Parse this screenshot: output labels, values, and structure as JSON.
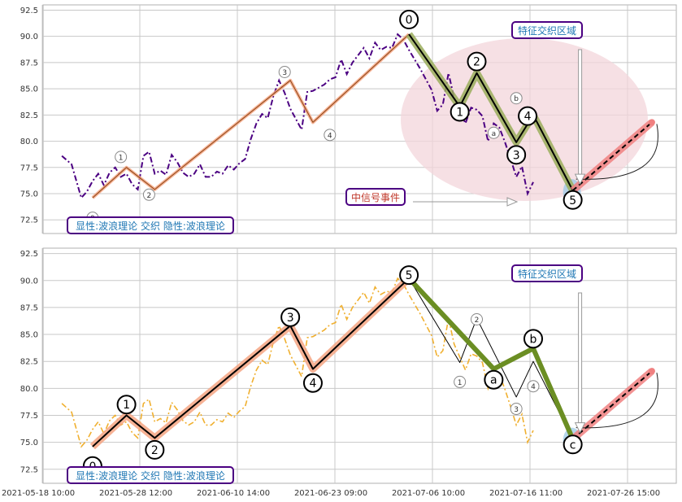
{
  "chart_data": [
    {
      "type": "line",
      "panel": "top",
      "title": "",
      "xlabel": "",
      "ylabel": "",
      "ylim": [
        71.2,
        93.0
      ],
      "yticks": [
        "72.5",
        "75.0",
        "77.5",
        "80.0",
        "82.5",
        "85.0",
        "87.5",
        "90.0",
        "92.5"
      ],
      "grid": true,
      "series": [
        {
          "style": "dash-dot",
          "color": "#4b0082",
          "values": [
            78.6,
            77.8,
            74.6,
            75.2,
            76.2,
            76.9,
            75.8,
            77.0,
            77.5,
            76.6,
            76.9,
            75.9,
            75.4,
            78.6,
            79.0,
            76.9,
            77.2,
            76.8,
            78.7,
            78.0,
            77.0,
            76.6,
            76.9,
            77.8,
            76.6,
            76.6,
            77.1,
            76.9,
            77.7,
            77.3,
            77.9,
            78.3,
            80.2,
            81.7,
            82.6,
            82.2,
            84.3,
            85.8,
            84.6,
            83.1,
            82.1,
            81.1,
            84.7,
            84.8,
            85.1,
            85.4,
            85.9,
            86.1,
            87.8,
            86.4,
            87.5,
            88.2,
            88.9,
            87.9,
            89.4,
            88.7,
            89.0,
            88.9,
            90.2,
            89.7,
            88.7,
            87.8,
            86.9,
            85.9,
            84.9,
            82.9,
            83.5,
            86.5,
            84.1,
            82.9,
            81.7,
            83.2,
            83.0,
            82.4,
            80.0,
            81.7,
            81.3,
            79.9,
            78.3,
            76.6,
            77.6,
            75.0,
            76.1
          ]
        }
      ],
      "waves": [
        {
          "style": "thin-line",
          "color": "#8b4513",
          "halo": "#f4a582",
          "points": [
            [
              2,
              74.6
            ],
            [
              8,
              77.5
            ],
            [
              13,
              75.4
            ],
            [
              37,
              85.8
            ],
            [
              41,
              81.8
            ],
            [
              58,
              90.2
            ]
          ]
        },
        {
          "style": "thick-line",
          "color": "#000000",
          "halo": "#9aad5c",
          "points": [
            [
              58,
              90.2
            ],
            [
              67,
              83.3
            ],
            [
              70,
              86.5
            ],
            [
              77,
              79.9
            ],
            [
              80,
              82.5
            ],
            [
              87,
              75.3
            ]
          ]
        },
        {
          "style": "dashed-line",
          "color": "#000000",
          "halo": "#f08080",
          "points": [
            [
              87,
              75.3
            ],
            [
              101,
              81.8
            ]
          ]
        }
      ],
      "wave_labels_small": [
        {
          "text": "0",
          "x": 2,
          "y": 72.7
        },
        {
          "text": "1",
          "x": 7,
          "y": 78.5
        },
        {
          "text": "2",
          "x": 12,
          "y": 74.9
        },
        {
          "text": "3",
          "x": 36,
          "y": 86.6
        },
        {
          "text": "4",
          "x": 44,
          "y": 80.6
        },
        {
          "text": "a",
          "x": 73,
          "y": 80.8
        },
        {
          "text": "b",
          "x": 77,
          "y": 84.1
        }
      ],
      "wave_labels_large": [
        {
          "text": "0",
          "x": 58,
          "y": 91.6
        },
        {
          "text": "1",
          "x": 67,
          "y": 82.8
        },
        {
          "text": "2",
          "x": 70,
          "y": 87.6
        },
        {
          "text": "3",
          "x": 77,
          "y": 78.7
        },
        {
          "text": "4",
          "x": 79,
          "y": 82.4
        },
        {
          "text": "5",
          "x": 87,
          "y": 74.4
        }
      ],
      "annotations": {
        "feature_box": "特征交织区域",
        "event_box": "中信号事件",
        "legend_box": "显性:波浪理论 交织 隐性:波浪理论"
      }
    },
    {
      "type": "line",
      "panel": "bottom",
      "title": "",
      "xlabel": "",
      "ylabel": "",
      "ylim": [
        71.2,
        93.0
      ],
      "yticks": [
        "72.5",
        "75.0",
        "77.5",
        "80.0",
        "82.5",
        "85.0",
        "87.5",
        "90.0",
        "92.5"
      ],
      "xticks": [
        "2021-05-18 10:00",
        "2021-05-28 12:00",
        "2021-06-10 14:00",
        "2021-06-23 09:00",
        "2021-07-06 10:00",
        "2021-07-16 11:00",
        "2021-07-26 15:00"
      ],
      "grid": true,
      "series": [
        {
          "style": "dash-dot",
          "color": "#f0b030",
          "values": [
            78.6,
            77.8,
            74.6,
            75.2,
            76.2,
            76.9,
            75.8,
            77.0,
            77.5,
            76.6,
            76.9,
            75.9,
            75.4,
            78.6,
            79.0,
            76.9,
            77.2,
            76.8,
            78.7,
            78.0,
            77.0,
            76.6,
            76.9,
            77.8,
            76.6,
            76.6,
            77.1,
            76.9,
            77.7,
            77.3,
            77.9,
            78.3,
            80.2,
            81.7,
            82.6,
            82.2,
            84.3,
            85.8,
            84.6,
            83.1,
            82.1,
            81.1,
            84.7,
            84.8,
            85.1,
            85.4,
            85.9,
            86.1,
            87.8,
            86.4,
            87.5,
            88.2,
            88.9,
            87.9,
            89.4,
            88.7,
            89.0,
            88.9,
            90.2,
            89.7,
            88.7,
            87.8,
            86.9,
            85.9,
            84.9,
            82.9,
            83.5,
            86.5,
            84.1,
            82.9,
            81.7,
            83.2,
            83.0,
            82.4,
            80.0,
            81.7,
            81.3,
            79.9,
            78.3,
            76.6,
            77.6,
            75.0,
            76.1
          ]
        }
      ],
      "waves": [
        {
          "style": "thick-line",
          "color": "#000000",
          "halo": "#f4a582",
          "points": [
            [
              2,
              74.6
            ],
            [
              8,
              77.5
            ],
            [
              13,
              75.4
            ],
            [
              37,
              85.8
            ],
            [
              41,
              81.8
            ],
            [
              58,
              90.2
            ]
          ]
        },
        {
          "style": "thin-line",
          "color": "#000000",
          "halo": "#ffffff",
          "points": [
            [
              58,
              90.2
            ],
            [
              67,
              82.4
            ],
            [
              70,
              86.5
            ],
            [
              77,
              79.2
            ],
            [
              80,
              82.5
            ],
            [
              87,
              75.3
            ]
          ]
        },
        {
          "style": "olive-line",
          "color": "#6b8e23",
          "halo": "#6b8e23",
          "points": [
            [
              58,
              90.2
            ],
            [
              73,
              81.8
            ],
            [
              80,
              83.7
            ],
            [
              87,
              75.3
            ]
          ]
        },
        {
          "style": "dashed-line",
          "color": "#000000",
          "halo": "#f08080",
          "points": [
            [
              87,
              75.3
            ],
            [
              101,
              81.6
            ]
          ]
        }
      ],
      "wave_labels_small": [
        {
          "text": "1",
          "x": 67,
          "y": 80.6
        },
        {
          "text": "2",
          "x": 70,
          "y": 86.4
        },
        {
          "text": "3",
          "x": 77,
          "y": 78.1
        },
        {
          "text": "4",
          "x": 80,
          "y": 80.2
        },
        {
          "text": "5",
          "x": 87,
          "y": 74.6
        },
        {
          "text": "0",
          "x": 58,
          "y": 90.8
        }
      ],
      "wave_labels_large": [
        {
          "text": "0",
          "x": 2,
          "y": 72.8
        },
        {
          "text": "1",
          "x": 8,
          "y": 78.5
        },
        {
          "text": "2",
          "x": 13,
          "y": 74.3
        },
        {
          "text": "3",
          "x": 37,
          "y": 86.6
        },
        {
          "text": "4",
          "x": 41,
          "y": 80.5
        },
        {
          "text": "5",
          "x": 58,
          "y": 90.5
        },
        {
          "text": "a",
          "x": 73,
          "y": 80.8
        },
        {
          "text": "b",
          "x": 80,
          "y": 84.6
        },
        {
          "text": "c",
          "x": 87,
          "y": 74.8
        }
      ],
      "annotations": {
        "feature_box": "特征交织区域",
        "legend_box": "显性:波浪理论 交织 隐性:波浪理论"
      }
    }
  ],
  "colors": {
    "grid": "#c8c8c8",
    "border": "#b0b0b0",
    "box_border": "#4b0082",
    "box_text_blue": "#1f77b4",
    "box_text_red": "#c0392b",
    "ellipse_fill": "#f3d6db",
    "blue_blob": "#9cc9e6"
  }
}
